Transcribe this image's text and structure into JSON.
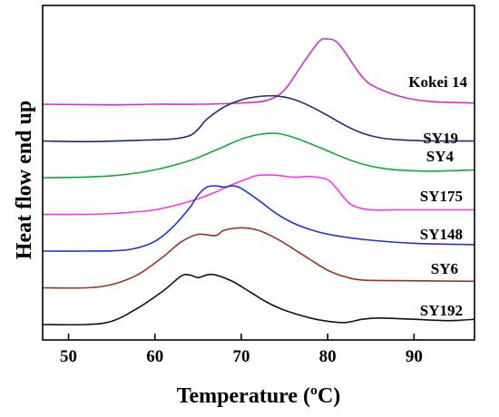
{
  "chart_data": {
    "type": "line",
    "title": "",
    "xlabel": "Temperature (ºC)",
    "ylabel": "Heat flow end up",
    "xlim": [
      47,
      97
    ],
    "xticks": [
      50,
      60,
      70,
      80,
      90
    ],
    "y_ticks_shown": false,
    "grid": false,
    "legend": "none (labels placed at right end of each curve)",
    "series": [
      {
        "name": "Kokei 14",
        "color": "#cc33cc",
        "offset": 6,
        "points": [
          [
            47,
            0.0
          ],
          [
            55,
            -0.01
          ],
          [
            60,
            0.0
          ],
          [
            65,
            0.0
          ],
          [
            70,
            0.02
          ],
          [
            73,
            0.06
          ],
          [
            75,
            0.22
          ],
          [
            77,
            0.6
          ],
          [
            79,
            0.96
          ],
          [
            80,
            1.0
          ],
          [
            81,
            0.96
          ],
          [
            82,
            0.8
          ],
          [
            83,
            0.6
          ],
          [
            84,
            0.42
          ],
          [
            85,
            0.3
          ],
          [
            87,
            0.18
          ],
          [
            89,
            0.1
          ],
          [
            92,
            0.04
          ],
          [
            97,
            0.02
          ]
        ]
      },
      {
        "name": "SY19",
        "color": "#1f2a7a",
        "offset": 5,
        "points": [
          [
            47,
            0.0
          ],
          [
            52,
            -0.01
          ],
          [
            58,
            0.01
          ],
          [
            62,
            0.03
          ],
          [
            64,
            0.08
          ],
          [
            65,
            0.18
          ],
          [
            66,
            0.33
          ],
          [
            68,
            0.52
          ],
          [
            70,
            0.63
          ],
          [
            72,
            0.68
          ],
          [
            74,
            0.69
          ],
          [
            76,
            0.64
          ],
          [
            78,
            0.53
          ],
          [
            80,
            0.39
          ],
          [
            82,
            0.24
          ],
          [
            84,
            0.12
          ],
          [
            86,
            0.05
          ],
          [
            88,
            0.02
          ],
          [
            92,
            0.0
          ],
          [
            97,
            0.0
          ]
        ]
      },
      {
        "name": "SY4",
        "color": "#11aa33",
        "offset": 4,
        "points": [
          [
            47,
            0.0
          ],
          [
            52,
            0.01
          ],
          [
            56,
            0.04
          ],
          [
            60,
            0.12
          ],
          [
            64,
            0.26
          ],
          [
            67,
            0.42
          ],
          [
            70,
            0.59
          ],
          [
            72,
            0.66
          ],
          [
            74,
            0.68
          ],
          [
            76,
            0.62
          ],
          [
            78,
            0.52
          ],
          [
            80,
            0.41
          ],
          [
            82,
            0.3
          ],
          [
            84,
            0.21
          ],
          [
            86,
            0.15
          ],
          [
            88,
            0.12
          ],
          [
            92,
            0.1
          ],
          [
            97,
            0.12
          ]
        ]
      },
      {
        "name": "SY175",
        "color": "#ff33ee",
        "offset": 3,
        "points": [
          [
            47,
            0.0
          ],
          [
            52,
            0.0
          ],
          [
            56,
            0.02
          ],
          [
            60,
            0.07
          ],
          [
            63,
            0.16
          ],
          [
            65,
            0.24
          ],
          [
            67,
            0.34
          ],
          [
            69,
            0.46
          ],
          [
            71,
            0.56
          ],
          [
            72,
            0.6
          ],
          [
            74,
            0.6
          ],
          [
            76,
            0.57
          ],
          [
            78,
            0.58
          ],
          [
            80,
            0.53
          ],
          [
            81,
            0.4
          ],
          [
            82,
            0.24
          ],
          [
            83,
            0.13
          ],
          [
            85,
            0.07
          ],
          [
            88,
            0.07
          ],
          [
            92,
            0.07
          ],
          [
            97,
            0.07
          ]
        ]
      },
      {
        "name": "SY148",
        "color": "#2233cc",
        "offset": 2,
        "points": [
          [
            47,
            0.0
          ],
          [
            52,
            0.0
          ],
          [
            56,
            0.01
          ],
          [
            58,
            0.05
          ],
          [
            60,
            0.15
          ],
          [
            62,
            0.36
          ],
          [
            64,
            0.66
          ],
          [
            65,
            0.86
          ],
          [
            66,
            0.98
          ],
          [
            67,
            1.0
          ],
          [
            68,
            0.98
          ],
          [
            69,
            1.0
          ],
          [
            70,
            0.96
          ],
          [
            72,
            0.78
          ],
          [
            74,
            0.58
          ],
          [
            76,
            0.43
          ],
          [
            78,
            0.33
          ],
          [
            80,
            0.26
          ],
          [
            84,
            0.18
          ],
          [
            90,
            0.12
          ],
          [
            97,
            0.1
          ]
        ]
      },
      {
        "name": "SY6",
        "color": "#993322",
        "offset": 1,
        "points": [
          [
            47,
            0.0
          ],
          [
            52,
            0.0
          ],
          [
            55,
            0.05
          ],
          [
            58,
            0.2
          ],
          [
            61,
            0.48
          ],
          [
            63,
            0.7
          ],
          [
            65,
            0.82
          ],
          [
            67,
            0.8
          ],
          [
            68,
            0.88
          ],
          [
            70,
            0.92
          ],
          [
            72,
            0.88
          ],
          [
            74,
            0.76
          ],
          [
            76,
            0.6
          ],
          [
            78,
            0.43
          ],
          [
            80,
            0.27
          ],
          [
            82,
            0.17
          ],
          [
            84,
            0.12
          ],
          [
            88,
            0.11
          ],
          [
            97,
            0.1
          ]
        ]
      },
      {
        "name": "SY192",
        "color": "#111111",
        "offset": 0,
        "points": [
          [
            47,
            0.0
          ],
          [
            52,
            0.0
          ],
          [
            55,
            0.05
          ],
          [
            58,
            0.25
          ],
          [
            61,
            0.52
          ],
          [
            63,
            0.74
          ],
          [
            64,
            0.76
          ],
          [
            65,
            0.72
          ],
          [
            66,
            0.76
          ],
          [
            67,
            0.76
          ],
          [
            69,
            0.66
          ],
          [
            71,
            0.5
          ],
          [
            73,
            0.34
          ],
          [
            75,
            0.22
          ],
          [
            78,
            0.1
          ],
          [
            80,
            0.05
          ],
          [
            82,
            0.03
          ],
          [
            84,
            0.08
          ],
          [
            86,
            0.1
          ],
          [
            90,
            0.08
          ],
          [
            94,
            0.06
          ],
          [
            97,
            0.08
          ]
        ]
      }
    ]
  }
}
